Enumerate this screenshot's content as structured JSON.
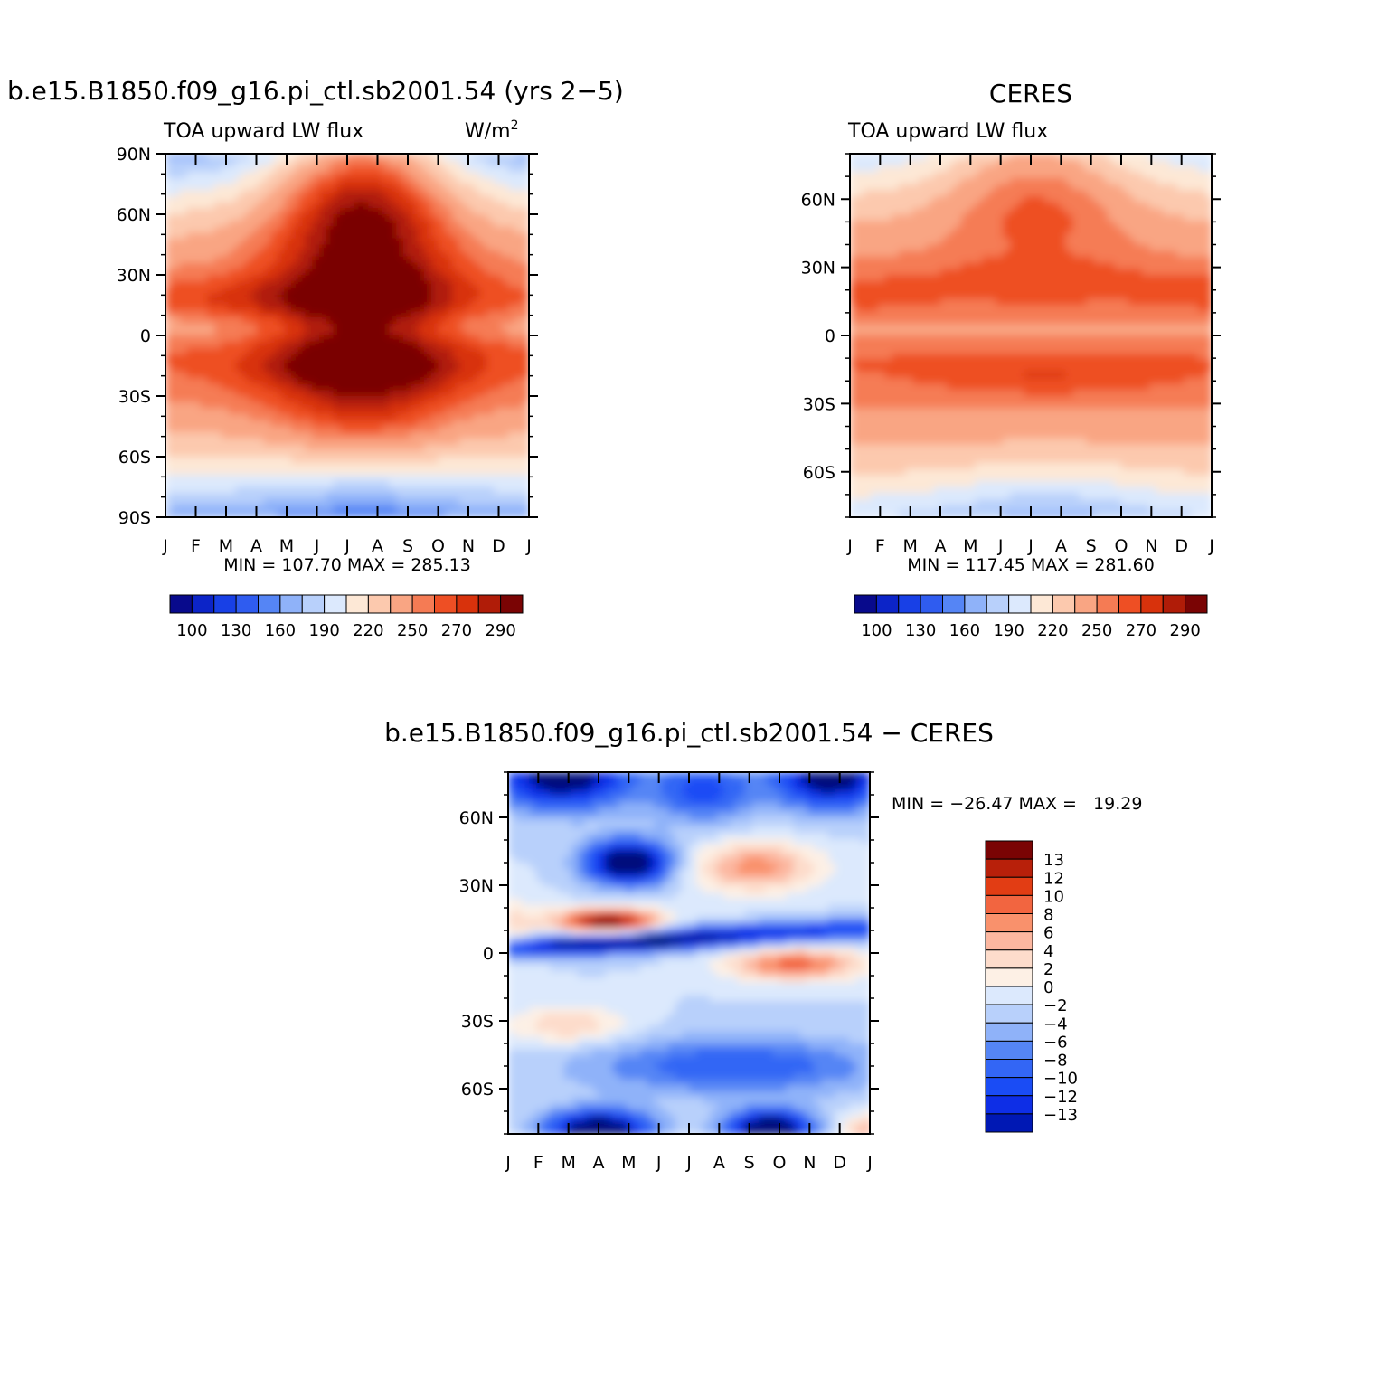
{
  "colors": {
    "abs_levels": [
      "#080a8c",
      "#0c24c8",
      "#1840e6",
      "#2f5cf0",
      "#5585f5",
      "#8fb2f9",
      "#b8d0fb",
      "#dce9fd",
      "#fde8d6",
      "#fcc9ae",
      "#f9a583",
      "#f57b54",
      "#ee4f24",
      "#d8320c",
      "#b01c08",
      "#7a0404"
    ],
    "diff_levels": [
      "#00107c",
      "#0018b4",
      "#0e2ee6",
      "#1a4cf5",
      "#3366f5",
      "#5585f5",
      "#8fb2f9",
      "#b8d0fb",
      "#dce9fd",
      "#fdf0e5",
      "#fddccb",
      "#fcb7a0",
      "#f9916c",
      "#f26540",
      "#e23d14",
      "#b8200a",
      "#7a0404"
    ]
  },
  "chart_data": [
    {
      "type": "heatmap",
      "id": "model",
      "title": "b.e15.B1850.f09_g16.pi_ctl.sb2001.54 (yrs 2−5)",
      "subtitle_left": "TOA upward LW flux",
      "units": "W/m",
      "units_sup": "2",
      "x_ticks": [
        "J",
        "F",
        "M",
        "A",
        "M",
        "J",
        "J",
        "A",
        "S",
        "O",
        "N",
        "D",
        "J"
      ],
      "y_ticks": [
        "90N",
        "60N",
        "30N",
        "0",
        "30S",
        "60S",
        "90S"
      ],
      "y_range": [
        90,
        -90
      ],
      "min_max_text": "MIN = 107.70 MAX = 285.13",
      "min": 107.7,
      "max": 285.13,
      "colorbar_labels": [
        "100",
        "130",
        "160",
        "190",
        "220",
        "250",
        "270",
        "290"
      ]
    },
    {
      "type": "heatmap",
      "id": "obs",
      "title": "CERES",
      "subtitle_left": "TOA upward LW flux",
      "x_ticks": [
        "J",
        "F",
        "M",
        "A",
        "M",
        "J",
        "J",
        "A",
        "S",
        "O",
        "N",
        "D",
        "J"
      ],
      "y_ticks": [
        "60N",
        "30N",
        "0",
        "30S",
        "60S"
      ],
      "y_range": [
        80,
        -80
      ],
      "min_max_text": "MIN = 117.45 MAX = 281.60",
      "min": 117.45,
      "max": 281.6,
      "colorbar_labels": [
        "100",
        "130",
        "160",
        "190",
        "220",
        "250",
        "270",
        "290"
      ]
    },
    {
      "type": "heatmap",
      "id": "diff",
      "title": "b.e15.B1850.f09_g16.pi_ctl.sb2001.54 − CERES",
      "x_ticks": [
        "J",
        "F",
        "M",
        "A",
        "M",
        "J",
        "J",
        "A",
        "S",
        "O",
        "N",
        "D",
        "J"
      ],
      "y_ticks": [
        "60N",
        "30N",
        "0",
        "30S",
        "60S"
      ],
      "y_range": [
        80,
        -80
      ],
      "min_max_text": "MIN = −26.47 MAX =   19.29",
      "min": -26.47,
      "max": 19.29,
      "colorbar_labels": [
        "13",
        "12",
        "10",
        "8",
        "6",
        "4",
        "2",
        "0",
        "−2",
        "−4",
        "−6",
        "−8",
        "−10",
        "−12",
        "−13"
      ]
    }
  ]
}
